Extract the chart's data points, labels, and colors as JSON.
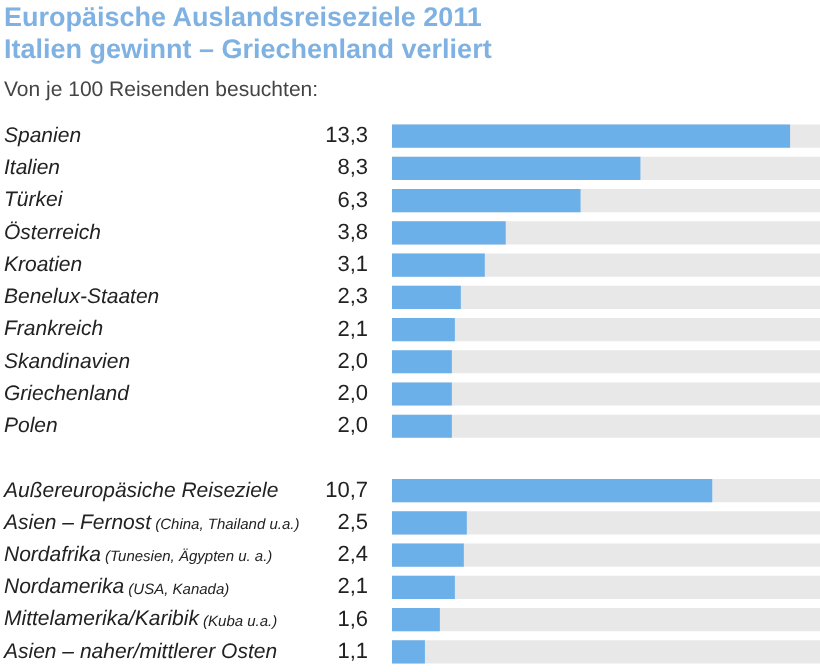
{
  "chart_data": {
    "type": "bar",
    "orientation": "horizontal",
    "title": "Europäische Auslandsreiseziele 2011\nItalien gewinnt – Griechenland verliert",
    "subtitle": "Von je 100 Reisenden besuchten:",
    "categories": [
      "Spanien",
      "Italien",
      "Türkei",
      "Österreich",
      "Kroatien",
      "Benelux-Staaten",
      "Frankreich",
      "Skandinavien",
      "Griechenland",
      "Polen",
      null,
      "Außereuropäsiche Reiseziele",
      "Asien – Fernost (China, Thailand u.a.)",
      "Nordafrika (Tunesien, Ägypten u. a.)",
      "Nordamerika (USA, Kanada)",
      "Mittelamerika/Karibik (Kuba u.a.)",
      "Asien – naher/mittlerer Osten"
    ],
    "values": [
      13.3,
      8.3,
      6.3,
      3.8,
      3.1,
      2.3,
      2.1,
      2.0,
      2.0,
      2.0,
      null,
      10.7,
      2.5,
      2.4,
      2.1,
      1.6,
      1.1
    ],
    "value_labels": [
      "13,3",
      "8,3",
      "6,3",
      "3,8",
      "3,1",
      "2,3",
      "2,1",
      "2,0",
      "2,0",
      "2,0",
      null,
      "10,7",
      "2,5",
      "2,4",
      "2,1",
      "1,6",
      "1,1"
    ],
    "color": "#6cb0ea",
    "xlim": [
      0,
      14.3
    ],
    "tick_labels": "y",
    "legend": false
  }
}
